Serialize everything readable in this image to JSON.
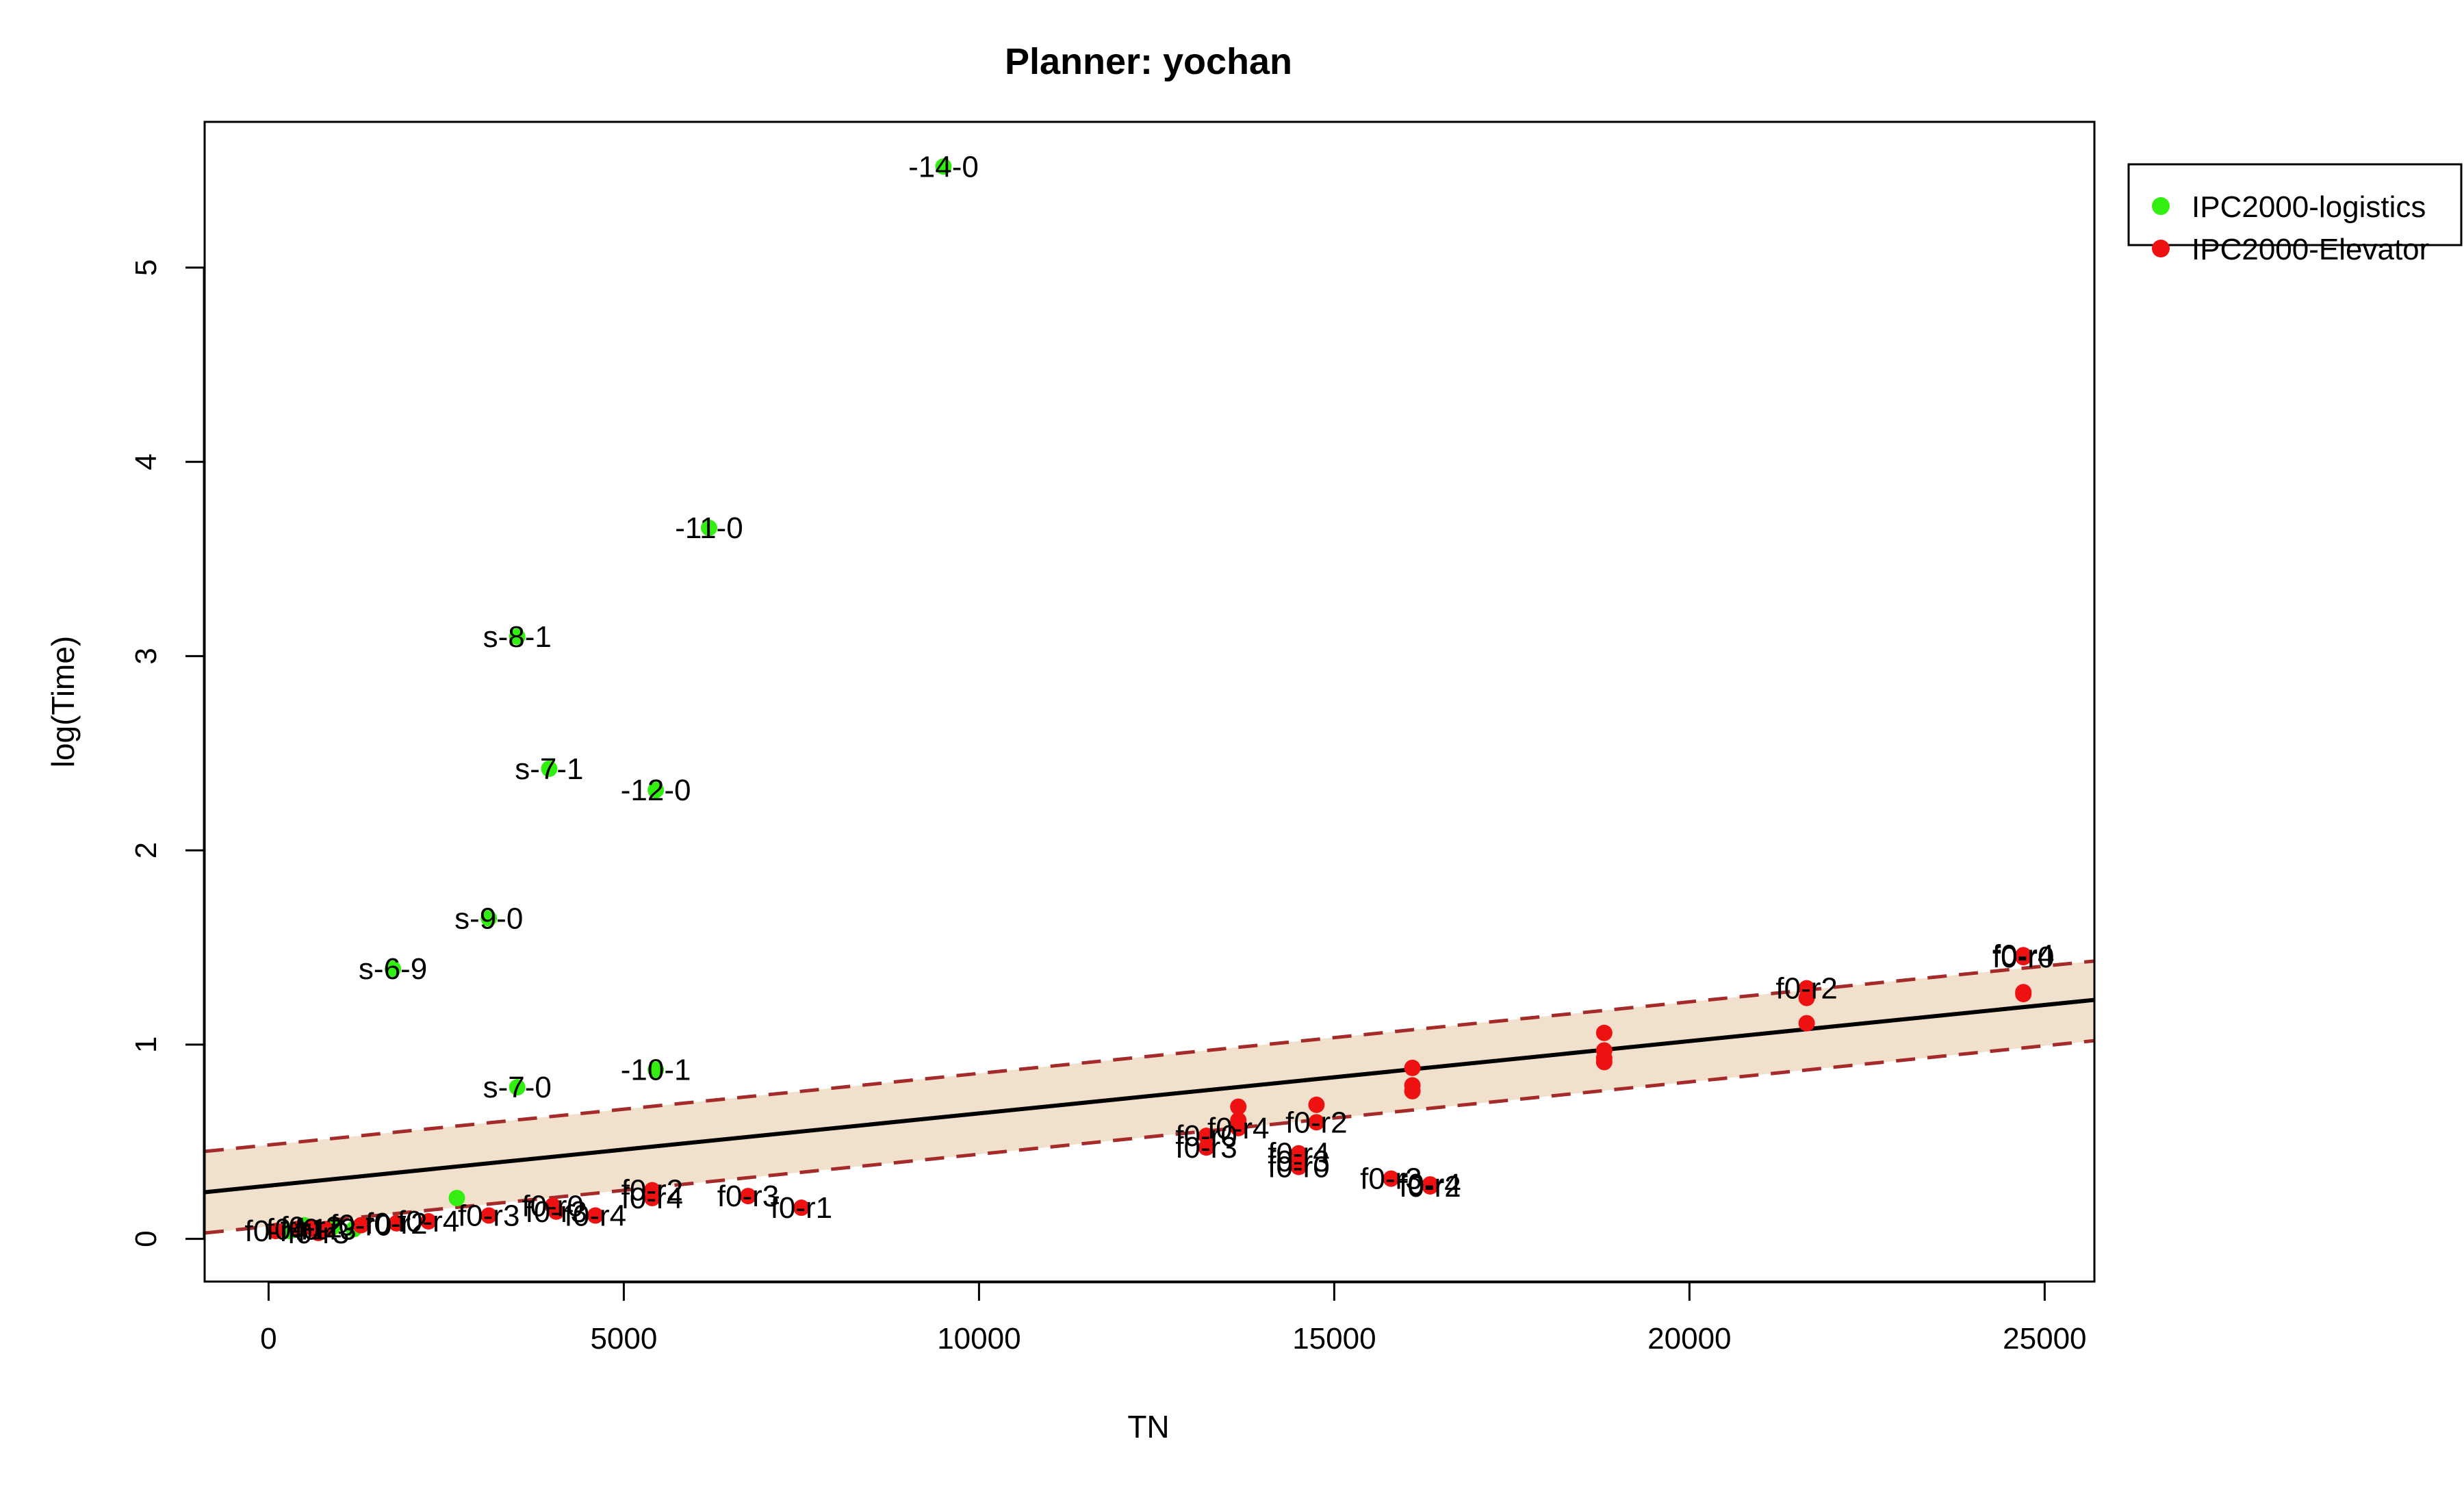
{
  "chart_data": {
    "type": "scatter",
    "title": "Planner: yochan",
    "xlabel": "TN",
    "ylabel": "log(Time)",
    "xlim": [
      -900,
      25700
    ],
    "ylim": [
      -0.22,
      5.75
    ],
    "x_ticks": [
      0,
      5000,
      10000,
      15000,
      20000,
      25000
    ],
    "y_ticks": [
      0,
      1,
      2,
      3,
      4,
      5
    ],
    "grid": false,
    "legend": {
      "placement": "outside-right",
      "entries": [
        {
          "label": "IPC2000-logistics",
          "color": "#33ee11"
        },
        {
          "label": "IPC2000-Elevator",
          "color": "#ee1111"
        }
      ]
    },
    "regression": {
      "fit": {
        "x": [
          -900,
          25700
        ],
        "y": [
          0.24,
          1.23
        ],
        "color": "#000000"
      },
      "upper": {
        "x": [
          -900,
          25700
        ],
        "y": [
          0.45,
          1.43
        ],
        "color": "#a52a2a"
      },
      "lower": {
        "x": [
          -900,
          25700
        ],
        "y": [
          0.03,
          1.02
        ],
        "color": "#a52a2a"
      },
      "band_color": "#f0e0cc"
    },
    "series": [
      {
        "name": "IPC2000-logistics",
        "color": "#33ee11",
        "points": [
          {
            "x": 9500,
            "y": 5.52,
            "label": "-14-0"
          },
          {
            "x": 6200,
            "y": 3.66,
            "label": "-11-0"
          },
          {
            "x": 3500,
            "y": 3.1,
            "label": "s-8-1"
          },
          {
            "x": 3950,
            "y": 2.42,
            "label": "s-7-1"
          },
          {
            "x": 5450,
            "y": 2.31,
            "label": "-12-0"
          },
          {
            "x": 3100,
            "y": 1.65,
            "label": "s-9-0"
          },
          {
            "x": 1750,
            "y": 1.39,
            "label": "s-6-9"
          },
          {
            "x": 5450,
            "y": 0.87,
            "label": "-10-1"
          },
          {
            "x": 3500,
            "y": 0.78,
            "label": "s-7-0"
          },
          {
            "x": 2650,
            "y": 0.21,
            "label": ""
          },
          {
            "x": 500,
            "y": 0.07,
            "label": ""
          },
          {
            "x": 1200,
            "y": 0.05,
            "label": ""
          },
          {
            "x": 300,
            "y": 0.04,
            "label": ""
          },
          {
            "x": 900,
            "y": 0.06,
            "label": ""
          }
        ]
      },
      {
        "name": "IPC2000-Elevator",
        "color": "#ee1111",
        "points": [
          {
            "x": 24700,
            "y": 1.46,
            "label": "f0-r4"
          },
          {
            "x": 24700,
            "y": 1.45,
            "label": "f0-r0"
          },
          {
            "x": 24700,
            "y": 1.27,
            "label": ""
          },
          {
            "x": 24700,
            "y": 1.26,
            "label": ""
          },
          {
            "x": 21650,
            "y": 1.29,
            "label": "f0-r2"
          },
          {
            "x": 21650,
            "y": 1.24,
            "label": ""
          },
          {
            "x": 21650,
            "y": 1.11,
            "label": ""
          },
          {
            "x": 18800,
            "y": 1.06,
            "label": ""
          },
          {
            "x": 18800,
            "y": 0.97,
            "label": ""
          },
          {
            "x": 18800,
            "y": 0.93,
            "label": ""
          },
          {
            "x": 18800,
            "y": 0.91,
            "label": ""
          },
          {
            "x": 16100,
            "y": 0.88,
            "label": ""
          },
          {
            "x": 16100,
            "y": 0.79,
            "label": ""
          },
          {
            "x": 16100,
            "y": 0.76,
            "label": ""
          },
          {
            "x": 14750,
            "y": 0.69,
            "label": ""
          },
          {
            "x": 14750,
            "y": 0.6,
            "label": "f0-r2"
          },
          {
            "x": 13650,
            "y": 0.68,
            "label": ""
          },
          {
            "x": 13650,
            "y": 0.61,
            "label": ""
          },
          {
            "x": 13650,
            "y": 0.57,
            "label": "f0-r4"
          },
          {
            "x": 13200,
            "y": 0.53,
            "label": "f0-r0"
          },
          {
            "x": 13200,
            "y": 0.47,
            "label": "f0-r3"
          },
          {
            "x": 14500,
            "y": 0.44,
            "label": "f0-r4"
          },
          {
            "x": 14500,
            "y": 0.4,
            "label": "f0-r3"
          },
          {
            "x": 14500,
            "y": 0.37,
            "label": "f0-r0"
          },
          {
            "x": 15800,
            "y": 0.31,
            "label": "f0-r3"
          },
          {
            "x": 16350,
            "y": 0.28,
            "label": "f0-r4"
          },
          {
            "x": 16350,
            "y": 0.27,
            "label": "f0-r2"
          },
          {
            "x": 7500,
            "y": 0.16,
            "label": "f0-r1"
          },
          {
            "x": 6750,
            "y": 0.22,
            "label": "f0-r3"
          },
          {
            "x": 5400,
            "y": 0.25,
            "label": "f0-r2"
          },
          {
            "x": 5400,
            "y": 0.21,
            "label": "f0-r4"
          },
          {
            "x": 4600,
            "y": 0.12,
            "label": "f0-r4"
          },
          {
            "x": 4000,
            "y": 0.17,
            "label": "f0-r0"
          },
          {
            "x": 4050,
            "y": 0.14,
            "label": "f0-r3"
          },
          {
            "x": 3100,
            "y": 0.12,
            "label": "f0-r3"
          },
          {
            "x": 2250,
            "y": 0.09,
            "label": "f0-r4"
          },
          {
            "x": 1800,
            "y": 0.08,
            "label": "f0-r2"
          },
          {
            "x": 1300,
            "y": 0.07,
            "label": "f0-r0"
          },
          {
            "x": 800,
            "y": 0.05,
            "label": "f0-r3"
          },
          {
            "x": 600,
            "y": 0.06,
            "label": "f0-r2"
          },
          {
            "x": 400,
            "y": 0.05,
            "label": "f0-r1"
          },
          {
            "x": 100,
            "y": 0.04,
            "label": "f0-r4"
          },
          {
            "x": 700,
            "y": 0.03,
            "label": "f0-r3"
          }
        ]
      }
    ]
  }
}
